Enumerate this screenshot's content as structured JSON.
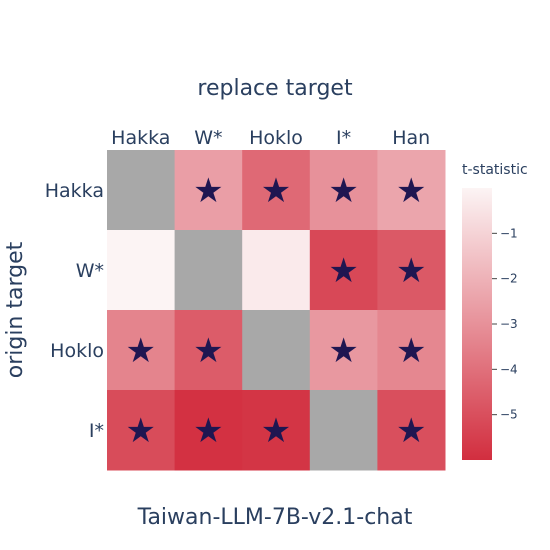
{
  "chart_data": {
    "type": "heatmap",
    "title": "Taiwan-LLM-7B-v2.1-chat",
    "xlabel": "replace target",
    "ylabel": "origin target",
    "x_categories": [
      "Hakka",
      "W*",
      "Hoklo",
      "I*",
      "Han"
    ],
    "y_categories": [
      "Hakka",
      "W*",
      "Hoklo",
      "I*"
    ],
    "z": [
      [
        null,
        -2.6,
        -4.2,
        -3.0,
        -2.4
      ],
      [
        0.0,
        null,
        -0.3,
        -5.2,
        -4.7
      ],
      [
        -3.4,
        -4.6,
        null,
        -2.8,
        -3.3
      ],
      [
        -5.1,
        -5.9,
        -5.8,
        null,
        -5.0
      ]
    ],
    "significant": [
      [
        false,
        true,
        true,
        true,
        true
      ],
      [
        false,
        false,
        false,
        true,
        true
      ],
      [
        true,
        true,
        false,
        true,
        true
      ],
      [
        true,
        true,
        true,
        false,
        true
      ]
    ],
    "marker_symbol": "★",
    "colorbar": {
      "title": "t-statistic",
      "range": [
        -6.0,
        0.0
      ],
      "ticks": [
        -1,
        -2,
        -3,
        -4,
        -5
      ],
      "tick_labels": [
        "−1",
        "−2",
        "−3",
        "−4",
        "−5"
      ]
    },
    "colors": {
      "high": "#fcf4f4",
      "low": "#d22e3f",
      "missing": "#a8a8a8",
      "marker": "#1f1651",
      "text": "#2a3f5f"
    }
  }
}
